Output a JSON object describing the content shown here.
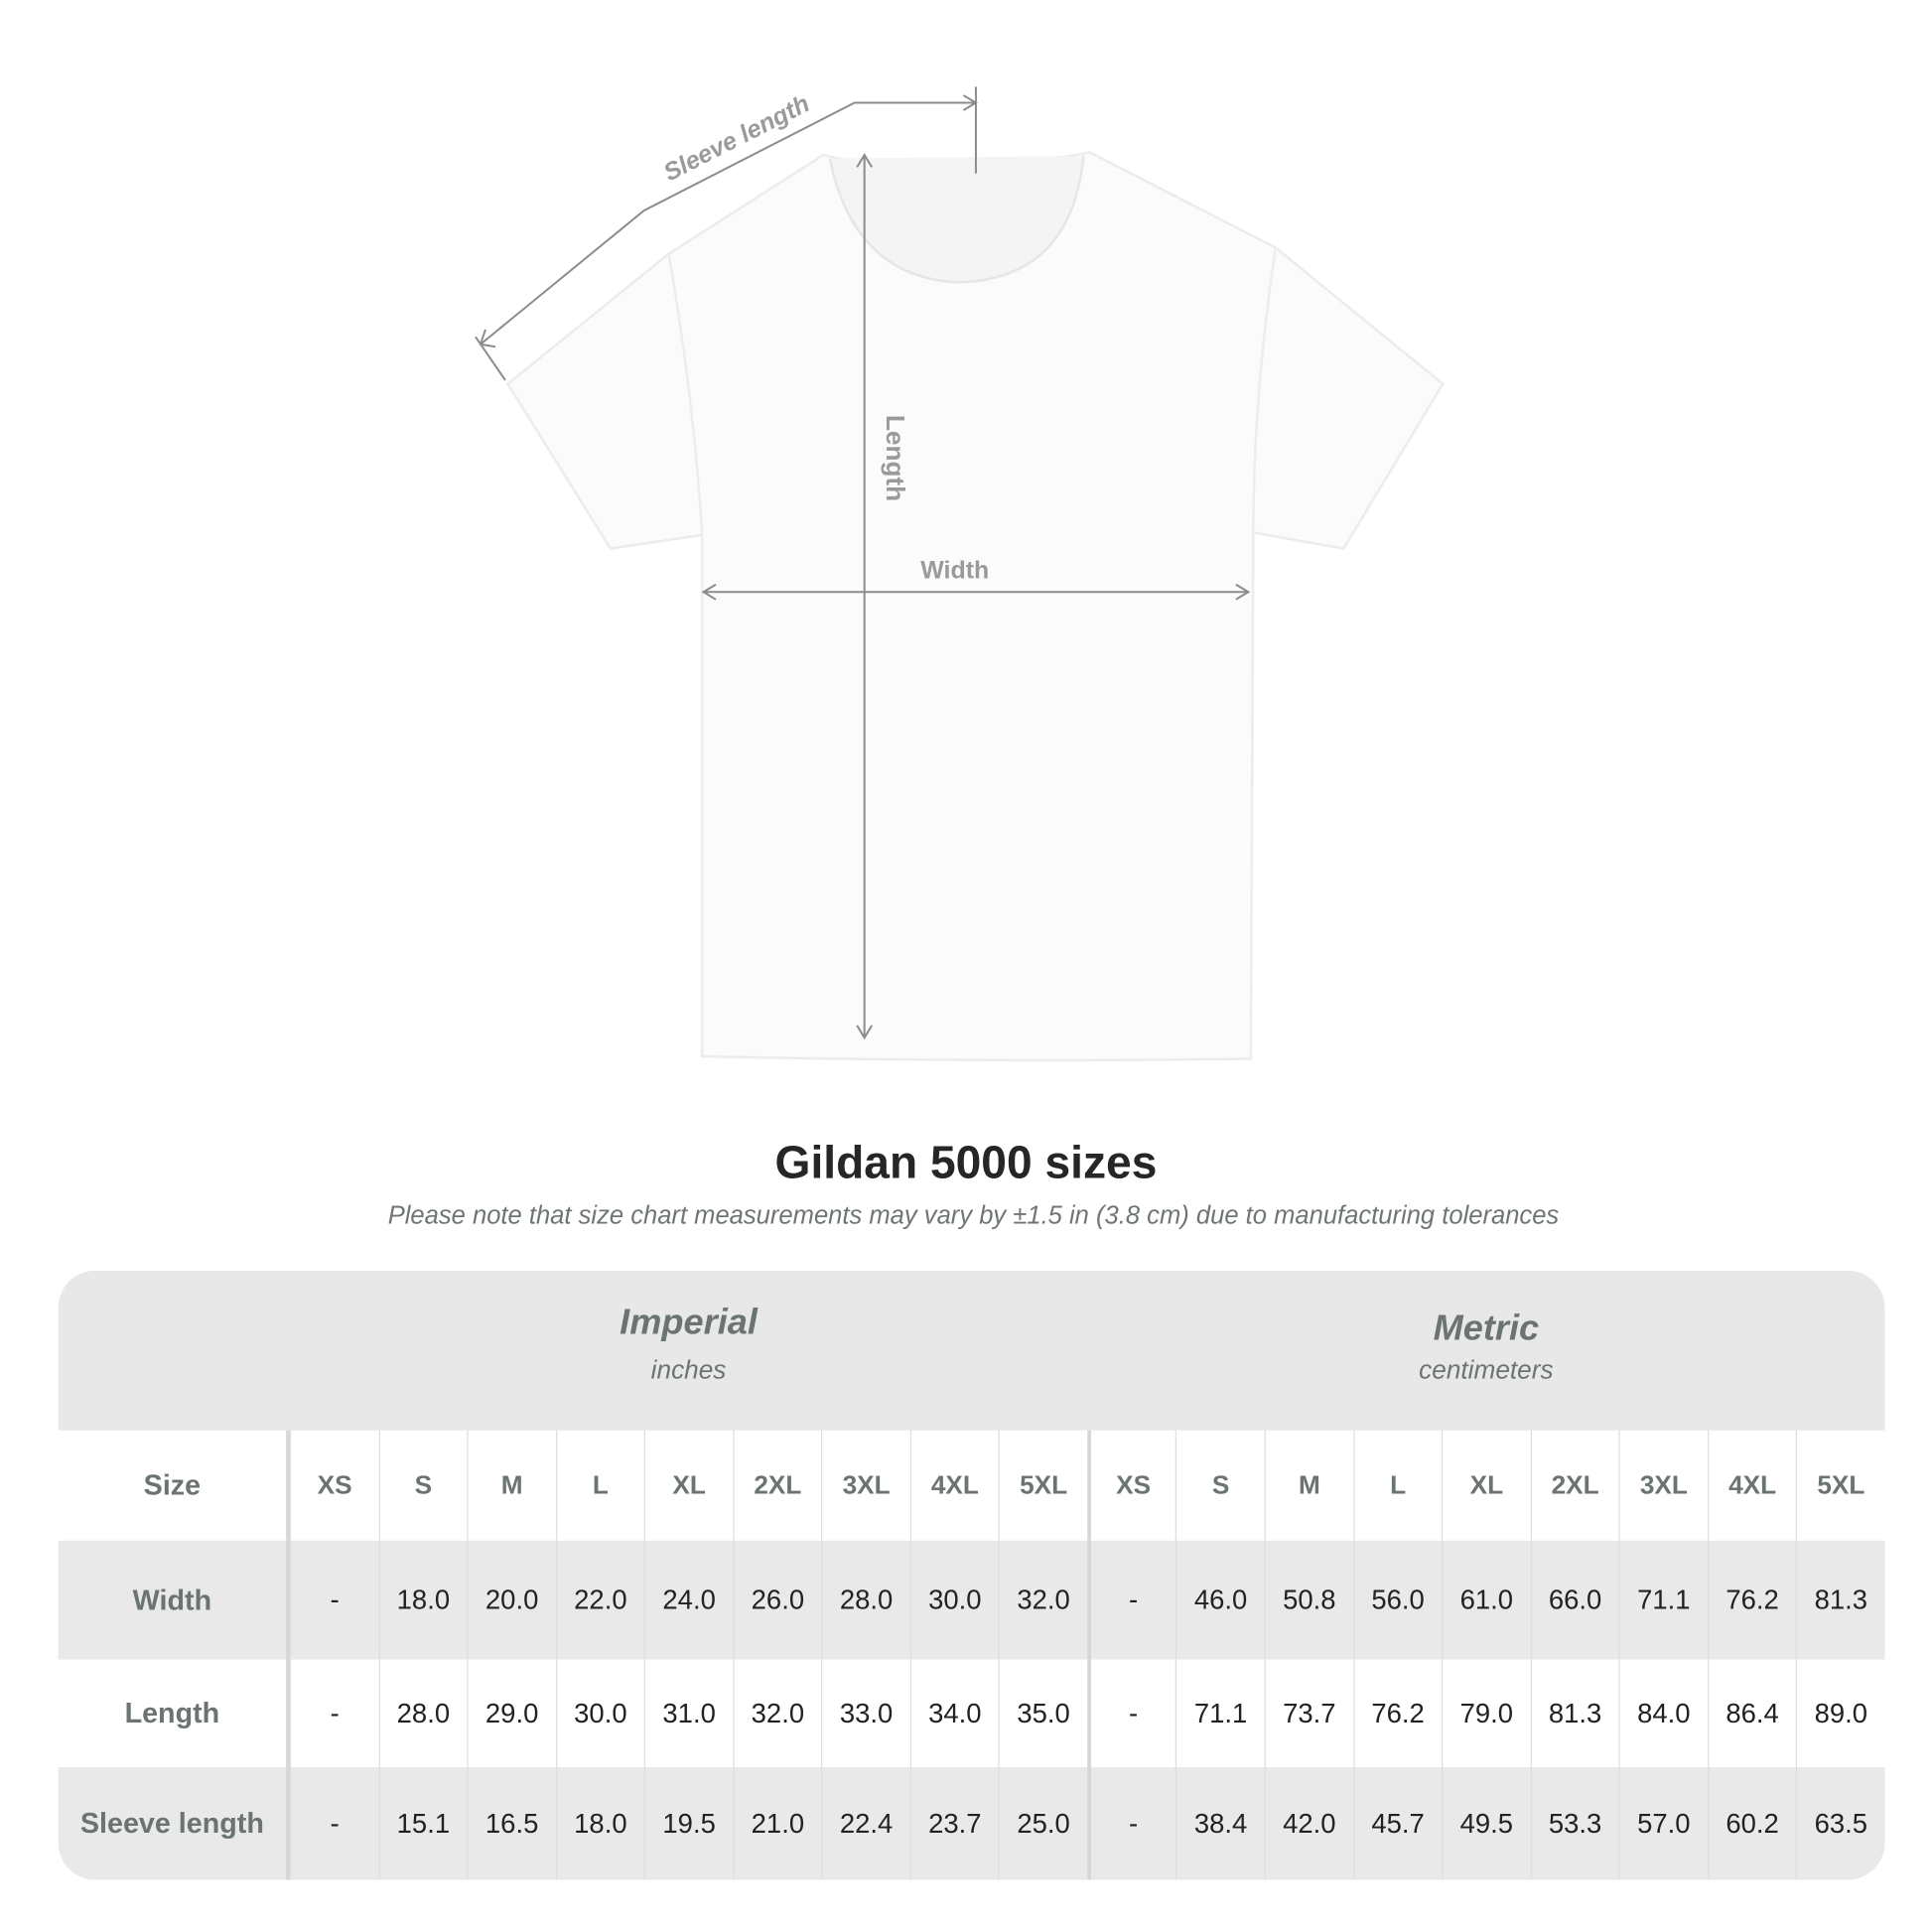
{
  "diagram": {
    "sleeve_label": "Sleeve length",
    "length_label": "Length",
    "width_label": "Width"
  },
  "title": "Gildan 5000 sizes",
  "note": "Please note that size chart measurements may vary by ±1.5 in (3.8 cm) due to manufacturing tolerances",
  "table": {
    "imperial": {
      "name": "Imperial",
      "unit": "inches"
    },
    "metric": {
      "name": "Metric",
      "unit": "centimeters"
    },
    "size_label": "Size",
    "sizes": [
      "XS",
      "S",
      "M",
      "L",
      "XL",
      "2XL",
      "3XL",
      "4XL",
      "5XL"
    ],
    "rows": [
      {
        "label": "Width",
        "imperial": [
          "-",
          "18.0",
          "20.0",
          "22.0",
          "24.0",
          "26.0",
          "28.0",
          "30.0",
          "32.0"
        ],
        "metric": [
          "-",
          "46.0",
          "50.8",
          "56.0",
          "61.0",
          "66.0",
          "71.1",
          "76.2",
          "81.3"
        ]
      },
      {
        "label": "Length",
        "imperial": [
          "-",
          "28.0",
          "29.0",
          "30.0",
          "31.0",
          "32.0",
          "33.0",
          "34.0",
          "35.0"
        ],
        "metric": [
          "-",
          "71.1",
          "73.7",
          "76.2",
          "79.0",
          "81.3",
          "84.0",
          "86.4",
          "89.0"
        ]
      },
      {
        "label": "Sleeve length",
        "imperial": [
          "-",
          "15.1",
          "16.5",
          "18.0",
          "19.5",
          "21.0",
          "22.4",
          "23.7",
          "25.0"
        ],
        "metric": [
          "-",
          "38.4",
          "42.0",
          "45.7",
          "49.5",
          "53.3",
          "57.0",
          "60.2",
          "63.5"
        ]
      }
    ]
  },
  "colors": {
    "header_bg": "#e8e8e8",
    "label_text": "#6b7373",
    "measure_line": "#8c8c8c"
  }
}
